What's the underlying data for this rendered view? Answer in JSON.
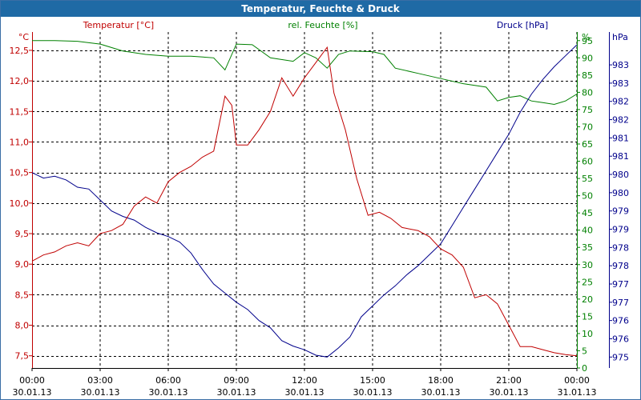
{
  "chart_data": {
    "type": "line",
    "title": "Temperatur, Feuchte & Druck",
    "x_ticks": [
      {
        "time": "00:00",
        "date": "30.01.13"
      },
      {
        "time": "03:00",
        "date": "30.01.13"
      },
      {
        "time": "06:00",
        "date": "30.01.13"
      },
      {
        "time": "09:00",
        "date": "30.01.13"
      },
      {
        "time": "12:00",
        "date": "30.01.13"
      },
      {
        "time": "15:00",
        "date": "30.01.13"
      },
      {
        "time": "18:00",
        "date": "30.01.13"
      },
      {
        "time": "21:00",
        "date": "30.01.13"
      },
      {
        "time": "00:00",
        "date": "31.01.13"
      }
    ],
    "x_range_hours": [
      0,
      24
    ],
    "grid": true,
    "series": [
      {
        "name": "Temperatur [°C]",
        "axis": "left",
        "unit": "°C",
        "color": "#c00000",
        "ylim": [
          7.3,
          12.8
        ],
        "ticks": [
          "12,5",
          "12,0",
          "11,5",
          "11,0",
          "10,5",
          "10,0",
          "9,5",
          "9,0",
          "8,5",
          "8,0",
          "7,5"
        ],
        "tick_values": [
          12.5,
          12.0,
          11.5,
          11.0,
          10.5,
          10.0,
          9.5,
          9.0,
          8.5,
          8.0,
          7.5
        ],
        "points": [
          [
            0,
            9.05
          ],
          [
            0.5,
            9.15
          ],
          [
            1,
            9.2
          ],
          [
            1.5,
            9.3
          ],
          [
            2,
            9.35
          ],
          [
            2.5,
            9.3
          ],
          [
            3,
            9.5
          ],
          [
            3.5,
            9.55
          ],
          [
            4,
            9.65
          ],
          [
            4.5,
            9.95
          ],
          [
            5,
            10.1
          ],
          [
            5.5,
            10.0
          ],
          [
            6,
            10.35
          ],
          [
            6.5,
            10.5
          ],
          [
            7,
            10.6
          ],
          [
            7.5,
            10.75
          ],
          [
            8,
            10.85
          ],
          [
            8.5,
            11.75
          ],
          [
            8.8,
            11.6
          ],
          [
            9,
            10.95
          ],
          [
            9.5,
            10.95
          ],
          [
            10,
            11.2
          ],
          [
            10.5,
            11.5
          ],
          [
            11,
            12.05
          ],
          [
            11.5,
            11.75
          ],
          [
            12,
            12.05
          ],
          [
            12.5,
            12.3
          ],
          [
            13,
            12.55
          ],
          [
            13.3,
            11.8
          ],
          [
            13.8,
            11.2
          ],
          [
            14.3,
            10.4
          ],
          [
            14.8,
            9.8
          ],
          [
            15.3,
            9.85
          ],
          [
            15.8,
            9.75
          ],
          [
            16.3,
            9.6
          ],
          [
            17,
            9.55
          ],
          [
            17.5,
            9.45
          ],
          [
            18,
            9.25
          ],
          [
            18.5,
            9.15
          ],
          [
            19,
            8.95
          ],
          [
            19.5,
            8.45
          ],
          [
            20,
            8.5
          ],
          [
            20.5,
            8.35
          ],
          [
            21,
            8.0
          ],
          [
            21.5,
            7.65
          ],
          [
            22,
            7.65
          ],
          [
            22.5,
            7.6
          ],
          [
            23,
            7.55
          ],
          [
            23.5,
            7.52
          ],
          [
            24,
            7.5
          ]
        ]
      },
      {
        "name": "rel. Feuchte [%]",
        "axis": "right1",
        "unit": "%",
        "color": "#008000",
        "ylim": [
          0,
          97.5
        ],
        "ticks": [
          "95",
          "90",
          "85",
          "80",
          "75",
          "70",
          "65",
          "60",
          "55",
          "50",
          "45",
          "40",
          "35",
          "30",
          "25",
          "20",
          "15",
          "10",
          "5",
          "0"
        ],
        "tick_values": [
          95,
          90,
          85,
          80,
          75,
          70,
          65,
          60,
          55,
          50,
          45,
          40,
          35,
          30,
          25,
          20,
          15,
          10,
          5,
          0
        ],
        "points": [
          [
            0,
            95
          ],
          [
            1,
            95
          ],
          [
            2,
            94.8
          ],
          [
            3,
            94
          ],
          [
            4,
            92
          ],
          [
            5,
            91
          ],
          [
            6,
            90.5
          ],
          [
            7,
            90.5
          ],
          [
            8,
            90
          ],
          [
            8.5,
            86.5
          ],
          [
            9,
            94
          ],
          [
            9.7,
            93.8
          ],
          [
            10.5,
            90
          ],
          [
            11.5,
            89
          ],
          [
            12,
            91.5
          ],
          [
            12.5,
            90
          ],
          [
            13,
            87
          ],
          [
            13.5,
            91
          ],
          [
            14,
            92
          ],
          [
            15,
            91.8
          ],
          [
            15.5,
            91
          ],
          [
            16,
            87
          ],
          [
            17,
            85.5
          ],
          [
            18,
            84
          ],
          [
            19,
            82.5
          ],
          [
            20,
            81.5
          ],
          [
            20.5,
            77.5
          ],
          [
            21,
            78.5
          ],
          [
            21.5,
            79
          ],
          [
            22,
            77.5
          ],
          [
            22.5,
            77
          ],
          [
            23,
            76.5
          ],
          [
            23.5,
            77.5
          ],
          [
            24,
            79.5
          ]
        ]
      },
      {
        "name": "Druck [hPa]",
        "axis": "right2",
        "unit": "hPa",
        "color": "#00008b",
        "ylim": [
          974.7,
          983.9
        ],
        "ticks": [
          "983",
          "983",
          "982",
          "982",
          "981",
          "981",
          "980",
          "980",
          "979",
          "979",
          "978",
          "978",
          "977",
          "977",
          "976",
          "976",
          "975"
        ],
        "tick_values": [
          983.0,
          982.5,
          982.0,
          981.5,
          981.0,
          980.5,
          980.0,
          979.5,
          979.0,
          978.5,
          978.0,
          977.5,
          977.0,
          976.5,
          976.0,
          975.5,
          975.0
        ],
        "points": [
          [
            0,
            980.05
          ],
          [
            0.5,
            979.9
          ],
          [
            1,
            979.95
          ],
          [
            1.5,
            979.85
          ],
          [
            2,
            979.65
          ],
          [
            2.5,
            979.6
          ],
          [
            3,
            979.3
          ],
          [
            3.5,
            979.0
          ],
          [
            4,
            978.85
          ],
          [
            4.5,
            978.75
          ],
          [
            5,
            978.55
          ],
          [
            5.5,
            978.4
          ],
          [
            6,
            978.3
          ],
          [
            6.5,
            978.15
          ],
          [
            7,
            977.85
          ],
          [
            7.5,
            977.4
          ],
          [
            8,
            977.0
          ],
          [
            8.5,
            976.75
          ],
          [
            9,
            976.5
          ],
          [
            9.5,
            976.3
          ],
          [
            10,
            976.0
          ],
          [
            10.5,
            975.8
          ],
          [
            11,
            975.45
          ],
          [
            11.5,
            975.3
          ],
          [
            12,
            975.2
          ],
          [
            12.5,
            975.05
          ],
          [
            13,
            975.0
          ],
          [
            13.5,
            975.25
          ],
          [
            14,
            975.55
          ],
          [
            14.5,
            976.1
          ],
          [
            15,
            976.4
          ],
          [
            15.5,
            976.7
          ],
          [
            16,
            976.95
          ],
          [
            16.5,
            977.25
          ],
          [
            17,
            977.5
          ],
          [
            17.5,
            977.8
          ],
          [
            18,
            978.1
          ],
          [
            18.5,
            978.6
          ],
          [
            19,
            979.1
          ],
          [
            19.5,
            979.6
          ],
          [
            20,
            980.1
          ],
          [
            20.5,
            980.6
          ],
          [
            21,
            981.1
          ],
          [
            21.5,
            981.7
          ],
          [
            22,
            982.2
          ],
          [
            22.5,
            982.6
          ],
          [
            23,
            982.95
          ],
          [
            23.5,
            983.25
          ],
          [
            24,
            983.55
          ]
        ]
      }
    ]
  }
}
